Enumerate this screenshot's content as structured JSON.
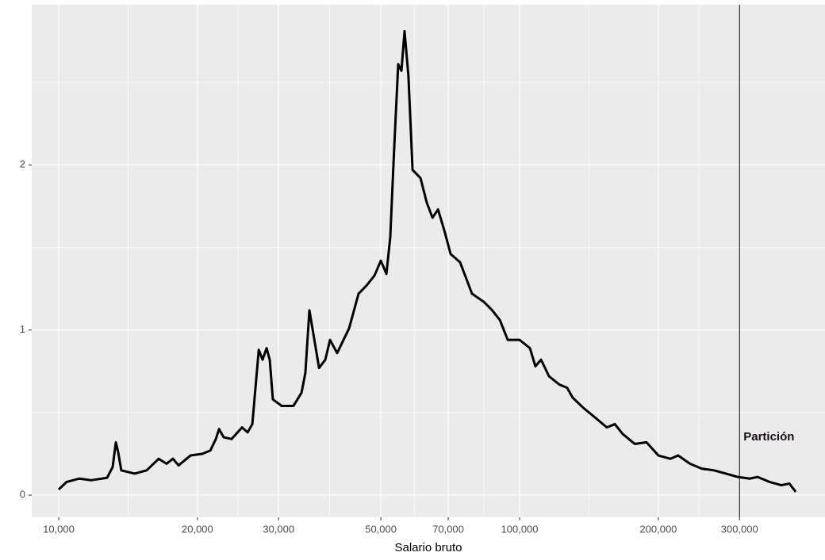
{
  "chart_data": {
    "type": "line",
    "xlabel": "Salario bruto",
    "xscale": "log",
    "grid": true,
    "xlim": [
      8740,
      459800
    ],
    "ylim": [
      -0.134,
      2.97
    ],
    "xticks": [
      {
        "value": 10000,
        "label": "10,000"
      },
      {
        "value": 20000,
        "label": "20,000"
      },
      {
        "value": 30000,
        "label": "30,000"
      },
      {
        "value": 50000,
        "label": "50,000"
      },
      {
        "value": 70000,
        "label": "70,000"
      },
      {
        "value": 100000,
        "label": "100,000"
      },
      {
        "value": 200000,
        "label": "200,000"
      },
      {
        "value": 300000,
        "label": "300,000"
      }
    ],
    "yticks": [
      0,
      1,
      2
    ],
    "vline": {
      "x": 300000,
      "color": "#000000"
    },
    "annotations": [
      {
        "text": "Partición",
        "x": 300000,
        "y": 0.35
      }
    ],
    "series": [
      {
        "color": "#000000",
        "x": [
          10000,
          10405,
          11090,
          11765,
          12735,
          13094,
          13305,
          13460,
          13670,
          14620,
          15520,
          16480,
          17140,
          17700,
          18200,
          19320,
          20490,
          21330,
          21930,
          22280,
          22810,
          23720,
          24990,
          25700,
          26310,
          27170,
          27690,
          28250,
          28700,
          29150,
          30470,
          32300,
          33640,
          34290,
          34990,
          35670,
          36720,
          37880,
          38790,
          40190,
          42660,
          44730,
          46570,
          48440,
          50000,
          51400,
          52400,
          53460,
          54530,
          55410,
          56280,
          57380,
          58580,
          60960,
          62910,
          64720,
          66530,
          68700,
          70850,
          74280,
          78830,
          83670,
          87150,
          90630,
          94240,
          100000,
          105300,
          108200,
          111300,
          115800,
          121900,
          126800,
          130400,
          137300,
          145800,
          154600,
          160900,
          167400,
          177700,
          188500,
          200000,
          212300,
          220800,
          234300,
          248600,
          264000,
          280400,
          297300,
          315600,
          328300,
          348400,
          369800,
          384800,
          397200
        ],
        "values": [
          0.034,
          0.08,
          0.1,
          0.09,
          0.105,
          0.17,
          0.32,
          0.26,
          0.15,
          0.13,
          0.15,
          0.22,
          0.19,
          0.22,
          0.18,
          0.24,
          0.25,
          0.27,
          0.34,
          0.4,
          0.35,
          0.34,
          0.41,
          0.38,
          0.43,
          0.88,
          0.82,
          0.89,
          0.82,
          0.58,
          0.54,
          0.54,
          0.62,
          0.74,
          1.12,
          0.98,
          0.77,
          0.82,
          0.94,
          0.86,
          1.01,
          1.22,
          1.27,
          1.33,
          1.42,
          1.34,
          1.56,
          2.11,
          2.61,
          2.57,
          2.81,
          2.54,
          1.97,
          1.92,
          1.77,
          1.68,
          1.73,
          1.6,
          1.46,
          1.41,
          1.22,
          1.17,
          1.12,
          1.06,
          0.94,
          0.94,
          0.89,
          0.78,
          0.82,
          0.72,
          0.67,
          0.65,
          0.59,
          0.53,
          0.47,
          0.41,
          0.43,
          0.37,
          0.31,
          0.32,
          0.24,
          0.22,
          0.24,
          0.19,
          0.16,
          0.15,
          0.13,
          0.11,
          0.1,
          0.11,
          0.08,
          0.06,
          0.07,
          0.02
        ]
      }
    ]
  }
}
